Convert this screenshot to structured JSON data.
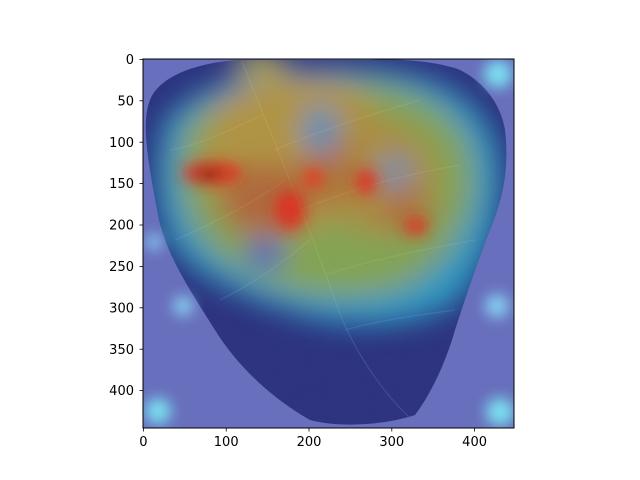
{
  "image": {
    "subject": "leaf",
    "overlay": "heatmap",
    "colormap": "jet"
  },
  "axes": {
    "x_ticks": [
      "0",
      "100",
      "200",
      "300",
      "400"
    ],
    "y_ticks": [
      "0",
      "50",
      "100",
      "150",
      "200",
      "250",
      "300",
      "350",
      "400"
    ],
    "xlim": [
      0,
      448
    ],
    "ylim": [
      448,
      0
    ],
    "x_tick_values": [
      0,
      100,
      200,
      300,
      400
    ],
    "y_tick_values": [
      0,
      50,
      100,
      150,
      200,
      250,
      300,
      350,
      400
    ]
  }
}
